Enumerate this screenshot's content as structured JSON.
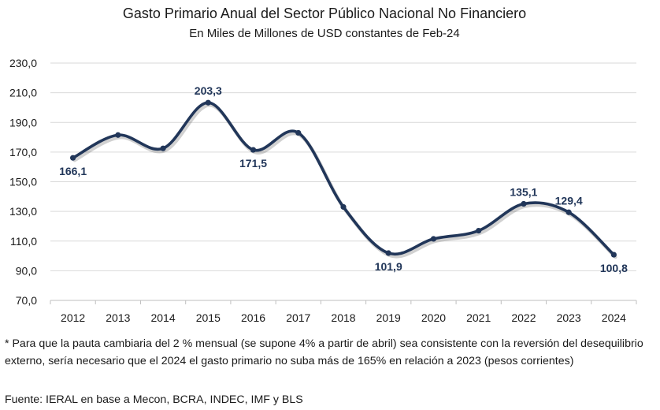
{
  "chart_data": {
    "type": "line",
    "title": "Gasto Primario Anual del Sector Público Nacional No Financiero",
    "subtitle": "En Miles de Millones de USD constantes de Feb-24",
    "xlabel": "",
    "ylabel": "",
    "categories": [
      "2012",
      "2013",
      "2014",
      "2015",
      "2016",
      "2017",
      "2018",
      "2019",
      "2020",
      "2021",
      "2022",
      "2023",
      "2024"
    ],
    "series": [
      {
        "values": [
          166.1,
          181.5,
          172.5,
          203.3,
          171.5,
          183.0,
          133.0,
          101.9,
          111.5,
          117.0,
          135.1,
          129.4,
          100.8
        ]
      }
    ],
    "data_labels": [
      {
        "index": 0,
        "text": "166,1",
        "pos": "below"
      },
      {
        "index": 3,
        "text": "203,3",
        "pos": "above"
      },
      {
        "index": 4,
        "text": "171,5",
        "pos": "below"
      },
      {
        "index": 7,
        "text": "101,9",
        "pos": "below"
      },
      {
        "index": 10,
        "text": "135,1",
        "pos": "above"
      },
      {
        "index": 11,
        "text": "129,4",
        "pos": "above"
      },
      {
        "index": 12,
        "text": "100,8",
        "pos": "below"
      }
    ],
    "ylim": [
      70,
      230
    ],
    "yticks": [
      "70,0",
      "90,0",
      "110,0",
      "130,0",
      "150,0",
      "170,0",
      "190,0",
      "210,0",
      "230,0"
    ],
    "grid": true,
    "line_color": "#213659",
    "grid_color": "#d9d9d9"
  },
  "note": "* Para que la pauta cambiaria del 2 % mensual (se supone 4% a partir de abril) sea consistente con la reversión del desequilibrio externo, sería necesario que el 2024 el gasto primario no suba más de 165% en relación  a 2023 (pesos corrientes)",
  "source": "Fuente: IERAL en base a Mecon, BCRA, INDEC, IMF y BLS"
}
